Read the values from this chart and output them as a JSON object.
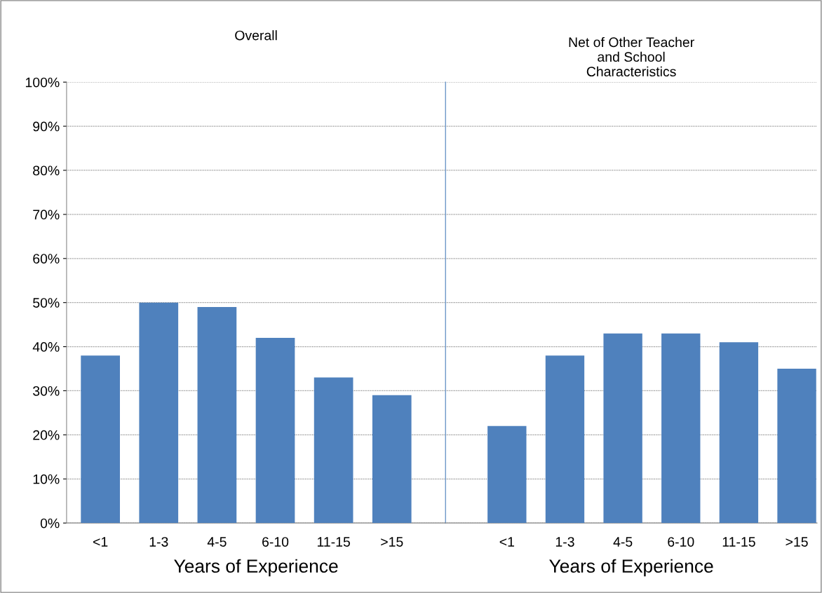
{
  "chart_data": [
    {
      "type": "bar",
      "title": "Overall",
      "xlabel": "Years of Experience",
      "categories": [
        "<1",
        "1-3",
        "4-5",
        "6-10",
        "11-15",
        ">15"
      ],
      "values": [
        38,
        50,
        49,
        42,
        33,
        29
      ],
      "color": "#4f81bd",
      "ylim": [
        0,
        100
      ],
      "yticks": [
        {
          "value": 0,
          "label": "0%"
        },
        {
          "value": 10,
          "label": "10%"
        },
        {
          "value": 20,
          "label": "20%"
        },
        {
          "value": 30,
          "label": "30%"
        },
        {
          "value": 40,
          "label": "40%"
        },
        {
          "value": 50,
          "label": "50%"
        },
        {
          "value": 60,
          "label": "60%"
        },
        {
          "value": 70,
          "label": "70%"
        },
        {
          "value": 80,
          "label": "80%"
        },
        {
          "value": 90,
          "label": "90%"
        },
        {
          "value": 100,
          "label": "100%"
        }
      ],
      "grid": "y",
      "legend": false
    },
    {
      "type": "bar",
      "title": "Net of Other Teacher\nand School\nCharacteristics",
      "xlabel": "Years of Experience",
      "categories": [
        "<1",
        "1-3",
        "4-5",
        "6-10",
        "11-15",
        ">15"
      ],
      "values": [
        22,
        38,
        43,
        43,
        41,
        35
      ],
      "color": "#4f81bd",
      "ylim": [
        0,
        100
      ],
      "yticks": [
        0,
        10,
        20,
        30,
        40,
        50,
        60,
        70,
        80,
        90,
        100
      ],
      "grid": "y",
      "legend": false,
      "tick_labels": "x"
    }
  ]
}
